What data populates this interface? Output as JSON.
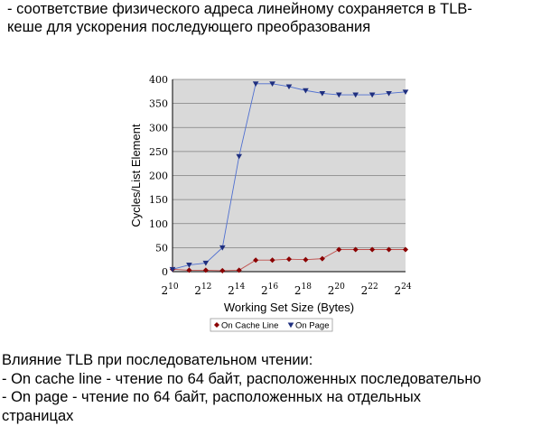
{
  "page": {
    "top_text": "- соответствие физического адреса линейному сохраняется в TLB-\nкеше для ускорения последующего преобразования",
    "bottom_text": "Влияние TLB при последовательном чтении:\n- On cache line - чтение по 64 байт, расположенных последовательно\n- On page - чтение по 64 байт, расположенных на отдельных\nстраницах"
  },
  "colors": {
    "plot_background": "#d9d9d9",
    "gridline": "#808080",
    "series_cache_line": "#c0504d",
    "series_page": "#4f6fd0",
    "marker_cache_line": "#8b0000",
    "marker_page": "#1f2f7f"
  },
  "chart_data": {
    "type": "line",
    "title": "",
    "xlabel": "Working Set Size (Bytes)",
    "ylabel": "Cycles/List Element",
    "x_scale": "log2",
    "x_exponents": [
      10,
      11,
      12,
      13,
      14,
      15,
      16,
      17,
      18,
      19,
      20,
      21,
      22,
      23,
      24
    ],
    "x_tick_exponents": [
      10,
      12,
      14,
      16,
      18,
      20,
      22,
      24
    ],
    "x_tick_base": "2",
    "ylim": [
      0,
      400
    ],
    "y_ticks": [
      0,
      50,
      100,
      150,
      200,
      250,
      300,
      350,
      400
    ],
    "grid": true,
    "legend": "bottom",
    "series": [
      {
        "name": "On Cache Line",
        "marker": "diamond",
        "values": [
          5,
          3,
          3,
          2,
          3,
          24,
          24,
          26,
          25,
          27,
          46,
          46,
          46,
          46,
          46
        ]
      },
      {
        "name": "On Page",
        "marker": "triangle-down",
        "values": [
          5,
          14,
          18,
          50,
          240,
          391,
          391,
          385,
          377,
          371,
          368,
          368,
          368,
          371,
          374
        ]
      }
    ]
  }
}
